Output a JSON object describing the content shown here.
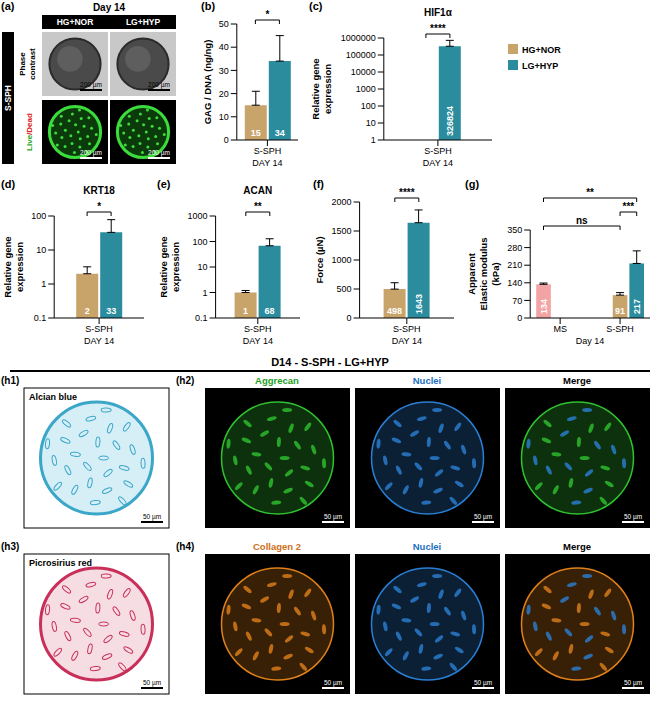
{
  "panels": {
    "a": {
      "letter": "(a)",
      "title": "Day 14",
      "columns": [
        "HG+NOR",
        "LG+HYP"
      ],
      "group": "S-SPH",
      "rows": [
        "Phase contrast",
        "Live/Dead"
      ],
      "scale_bar": "200 µm"
    },
    "h": {
      "title": "D14 - S-SPH - LG+HYP",
      "items": [
        {
          "letter": "(h1)",
          "labels": [
            "Alcian blue"
          ],
          "scale_bar": "50 µm"
        },
        {
          "letter": "(h2)",
          "labels": [
            "Aggrecan",
            "Nuclei",
            "Merge"
          ],
          "scale_bar": "50 µm"
        },
        {
          "letter": "(h3)",
          "labels": [
            "Picrosirius red"
          ],
          "scale_bar": "50 µm"
        },
        {
          "letter": "(h4)",
          "labels": [
            "Collagen 2",
            "Nuclei",
            "Merge"
          ],
          "scale_bar": "50 µm"
        }
      ]
    }
  },
  "chart_data": [
    {
      "letter": "(b)",
      "type": "bar",
      "ylabel": "GAG / DNA (ng/ng)",
      "categories": [
        "S-SPH"
      ],
      "xlabel": "DAY 14",
      "series": [
        {
          "name": "HG+NOR",
          "color": "#c9a46a",
          "values": [
            15
          ],
          "errors": [
            6
          ]
        },
        {
          "name": "LG+HYP",
          "color": "#2b8c9e",
          "values": [
            34
          ],
          "errors": [
            11
          ]
        }
      ],
      "ylim": [
        0,
        50
      ],
      "yticks": [
        0,
        10,
        20,
        30,
        40,
        50
      ],
      "data_labels": true,
      "significance": [
        {
          "from": "HG+NOR",
          "to": "LG+HYP",
          "label": "*"
        }
      ]
    },
    {
      "letter": "(c)",
      "type": "bar",
      "title": "HIF1α",
      "ylabel": "Relative gene expression",
      "categories": [
        "S-SPH"
      ],
      "xlabel": "DAY 14",
      "series": [
        {
          "name": "HG+NOR",
          "color": "#c9a46a",
          "values": [
            1
          ],
          "errors": [
            0.2
          ]
        },
        {
          "name": "LG+HYP",
          "color": "#2b8c9e",
          "values": [
            326824
          ],
          "errors": [
            400000
          ]
        }
      ],
      "ylim": [
        1,
        1000000
      ],
      "yticks": [
        1,
        10,
        100,
        1000,
        10000,
        100000,
        1000000
      ],
      "log": "y",
      "data_labels": true,
      "legend": "right",
      "significance": [
        {
          "from": "HG+NOR",
          "to": "LG+HYP",
          "label": "****"
        }
      ]
    },
    {
      "letter": "(d)",
      "type": "bar",
      "title": "KRT18",
      "ylabel": "Relative gene expression",
      "categories": [
        "S-SPH"
      ],
      "xlabel": "DAY 14",
      "series": [
        {
          "name": "HG+NOR",
          "color": "#c9a46a",
          "values": [
            2
          ],
          "errors": [
            1.2
          ]
        },
        {
          "name": "LG+HYP",
          "color": "#2b8c9e",
          "values": [
            33
          ],
          "errors": [
            45
          ]
        }
      ],
      "ylim": [
        0.1,
        100
      ],
      "yticks": [
        0.1,
        1,
        10,
        100
      ],
      "log": "y",
      "data_labels": true,
      "significance": [
        {
          "from": "HG+NOR",
          "to": "LG+HYP",
          "label": "*"
        }
      ]
    },
    {
      "letter": "(e)",
      "type": "bar",
      "title": "ACAN",
      "ylabel": "Relative gene expression",
      "categories": [
        "S-SPH"
      ],
      "xlabel": "DAY 14",
      "series": [
        {
          "name": "HG+NOR",
          "color": "#c9a46a",
          "values": [
            1
          ],
          "errors": [
            0.2
          ]
        },
        {
          "name": "LG+HYP",
          "color": "#2b8c9e",
          "values": [
            68
          ],
          "errors": [
            60
          ]
        }
      ],
      "ylim": [
        0.1,
        1000
      ],
      "yticks": [
        0.1,
        1,
        10,
        100,
        1000
      ],
      "log": "y",
      "data_labels": true,
      "significance": [
        {
          "from": "HG+NOR",
          "to": "LG+HYP",
          "label": "**"
        }
      ]
    },
    {
      "letter": "(f)",
      "type": "bar",
      "ylabel": "Force (µN)",
      "categories": [
        "S-SPH"
      ],
      "xlabel": "DAY 14",
      "series": [
        {
          "name": "HG+NOR",
          "color": "#c9a46a",
          "values": [
            498
          ],
          "errors": [
            110
          ]
        },
        {
          "name": "LG+HYP",
          "color": "#2b8c9e",
          "values": [
            1643
          ],
          "errors": [
            220
          ]
        }
      ],
      "ylim": [
        0,
        2000
      ],
      "yticks": [
        0,
        500,
        1000,
        1500,
        2000
      ],
      "data_labels": true,
      "significance": [
        {
          "from": "HG+NOR",
          "to": "LG+HYP",
          "label": "****"
        }
      ]
    },
    {
      "letter": "(g)",
      "type": "bar",
      "ylabel": "Apparent Elastic modulus (kPa)",
      "categories": [
        "MS",
        "S-SPH"
      ],
      "xlabel": "Day 14",
      "series": [
        {
          "name": "MS",
          "color": "#f2a3a3",
          "values": [
            134,
            null
          ],
          "errors": [
            5,
            null
          ]
        },
        {
          "name": "HG+NOR",
          "color": "#c9a46a",
          "values": [
            null,
            91
          ],
          "errors": [
            null,
            10
          ]
        },
        {
          "name": "LG+HYP",
          "color": "#2b8c9e",
          "values": [
            null,
            217
          ],
          "errors": [
            null,
            50
          ]
        }
      ],
      "ylim": [
        0,
        350
      ],
      "yticks": [
        0,
        70,
        140,
        210,
        280,
        350
      ],
      "data_labels": true,
      "significance": [
        {
          "from": "MS",
          "to": "HG+NOR",
          "label": "ns"
        },
        {
          "from": "HG+NOR",
          "to": "LG+HYP",
          "label": "***"
        },
        {
          "from": "MS",
          "to": "LG+HYP",
          "label": "**"
        }
      ]
    }
  ]
}
